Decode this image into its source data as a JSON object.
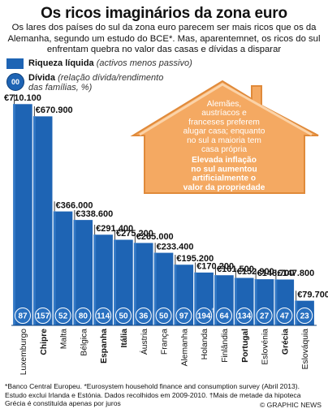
{
  "title": "Os ricos imaginários da zona euro",
  "subtitle": "Os lares dos países do sul da zona euro parecem ser mais ricos que os da Alemanha, segundo um estudo do BCE*. Mas, aparentemnet, os ricos do sul enfrentam quebra no valor das casas e dívidas a disparar",
  "legend": {
    "wealth_title": "Riqueza líquida",
    "wealth_note": "(activos menos passivo)",
    "debt_circle": "00",
    "debt_title": "Dívida",
    "debt_note_1": "(relação dívida/rendimento",
    "debt_note_2": "das famílias, %)"
  },
  "house": {
    "text": [
      "Alemães,",
      "austríacos e",
      "franceses preferem",
      "alugar casa; enquanto",
      "no sul a maioria tem",
      "casa própria"
    ],
    "bold_text": [
      "Elevada inflação",
      "no sul aumentou",
      "artificialmente o",
      "valor da propriedade"
    ]
  },
  "chart_data": {
    "type": "bar",
    "title": "Os ricos imaginários da zona euro",
    "categories": [
      "Luxemburgo",
      "Chipre",
      "Malta",
      "Bélgica",
      "Espanha",
      "Itália",
      "Áustria",
      "França",
      "Alemanha",
      "Holanda",
      "Finlândia",
      "Portugal",
      "Eslovénia",
      "Grécia",
      "Eslováquia"
    ],
    "bold_categories": [
      "Chipre",
      "Espanha",
      "Itália",
      "Portugal",
      "Grécia"
    ],
    "value_labels": [
      "€710.100",
      "€670.900",
      "€366.000",
      "€338.600",
      "€291.400",
      "€275.200",
      "€265.000",
      "€233.400",
      "€195.200",
      "€170.200",
      "€161.500",
      "€152.900",
      "€148.700",
      "€147.800",
      "€79.700"
    ],
    "series": [
      {
        "name": "Riqueza líquida",
        "values": [
          710100,
          670900,
          366000,
          338600,
          291400,
          275200,
          265000,
          233400,
          195200,
          170200,
          161500,
          152900,
          148700,
          147800,
          79700
        ]
      },
      {
        "name": "Dívida",
        "values": [
          87,
          157,
          52,
          80,
          114,
          50,
          36,
          50,
          97,
          194,
          64,
          134,
          27,
          47,
          23
        ]
      }
    ],
    "debt_labels": [
      "87",
      "157",
      "52",
      "80",
      "114",
      "50",
      "36",
      "50",
      "97",
      "194",
      "64",
      "134",
      "27",
      "47",
      "23"
    ],
    "debt_note_marker": "†",
    "ylim": [
      0,
      720000
    ],
    "colors": {
      "bar": "#1e64b4",
      "bar_dark": "#0d3f7a",
      "circle": "#2870c0",
      "house": "#f2a257"
    }
  },
  "footnote": "*Banco Central Europeu. *Eurosystem household finance and consumption survey (Abril 2013). Estudo exclui Irlanda e Estónia. Dados recolhidos em 2009-2010. †Mais de metade da hipoteca Grécia é constituída apenas por juros",
  "credit": "© GRAPHIC NEWS"
}
